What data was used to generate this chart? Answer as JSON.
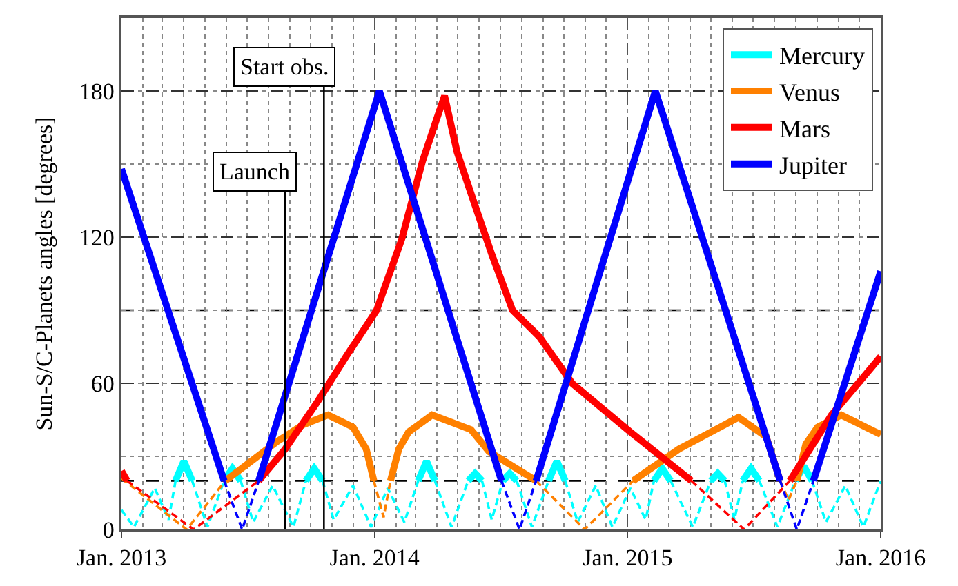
{
  "chart_data": {
    "type": "line",
    "ylabel": "Sun-S/C-Planets angles [degrees]",
    "xlim": [
      "2013-01-01",
      "2016-01-01"
    ],
    "xticks": [
      {
        "value": "2013-01-01",
        "label": "Jan. 2013"
      },
      {
        "value": "2014-01-01",
        "label": "Jan. 2014"
      },
      {
        "value": "2015-01-01",
        "label": "Jan. 2015"
      },
      {
        "value": "2016-01-01",
        "label": "Jan. 2016"
      }
    ],
    "ylim": [
      0,
      210
    ],
    "yticks": [
      0,
      60,
      120,
      180
    ],
    "grid": true,
    "legend": "top right",
    "ref_lines": [
      {
        "axis": "y",
        "value": 20,
        "label": null,
        "color": "#000000",
        "line_style": "dashed"
      },
      {
        "axis": "y",
        "value": 90,
        "label": null,
        "color": "#000000",
        "line_style": "dashed"
      },
      {
        "axis": "x",
        "value": "2013-08-25",
        "label": "Launch",
        "color": "#000000",
        "line_style": "solid"
      },
      {
        "axis": "x",
        "value": "2013-10-20",
        "label": "Start obs.",
        "color": "#000000",
        "line_style": "solid"
      }
    ],
    "series": [
      {
        "name": "Mercury",
        "color": "#00ffff",
        "x": [
          "2013-01-01",
          "2013-01-19",
          "2013-02-18",
          "2013-03-10",
          "2013-03-20",
          "2013-04-01",
          "2013-04-13",
          "2013-05-05",
          "2013-05-29",
          "2013-06-10",
          "2013-06-22",
          "2013-07-10",
          "2013-08-07",
          "2013-09-06",
          "2013-09-24",
          "2013-10-06",
          "2013-10-18",
          "2013-11-03",
          "2013-12-01",
          "2013-12-27",
          "2014-01-20",
          "2014-02-13",
          "2014-03-05",
          "2014-03-17",
          "2014-03-29",
          "2014-04-22",
          "2014-05-16",
          "2014-05-26",
          "2014-06-05",
          "2014-06-19",
          "2014-07-05",
          "2014-07-15",
          "2014-07-25",
          "2014-08-16",
          "2014-09-09",
          "2014-09-21",
          "2014-10-03",
          "2014-10-21",
          "2014-11-16",
          "2014-12-10",
          "2015-01-05",
          "2015-01-27",
          "2015-02-08",
          "2015-02-20",
          "2015-03-04",
          "2015-04-05",
          "2015-05-01",
          "2015-05-11",
          "2015-05-21",
          "2015-06-04",
          "2015-06-16",
          "2015-06-28",
          "2015-07-10",
          "2015-08-05",
          "2015-08-31",
          "2015-09-12",
          "2015-09-24",
          "2015-10-14",
          "2015-11-11",
          "2015-12-07",
          "2016-01-01"
        ],
        "values": [
          8,
          1,
          17,
          4,
          20,
          28,
          20,
          1,
          20,
          25,
          20,
          3,
          18,
          1,
          20,
          25,
          20,
          4,
          18,
          1,
          17,
          3,
          20,
          28,
          20,
          1,
          20,
          23,
          20,
          4,
          20,
          23,
          20,
          1,
          20,
          28,
          20,
          3,
          18,
          1,
          17,
          4,
          20,
          25,
          20,
          1,
          20,
          23,
          20,
          4,
          20,
          25,
          20,
          1,
          20,
          26,
          20,
          3,
          18,
          1,
          20
        ]
      },
      {
        "name": "Venus",
        "color": "#ff8000",
        "x": [
          "2013-01-01",
          "2013-04-05",
          "2013-05-31",
          "2013-08-13",
          "2013-09-20",
          "2013-10-26",
          "2013-12-01",
          "2013-12-20",
          "2013-12-31",
          "2014-01-14",
          "2014-01-24",
          "2014-02-05",
          "2014-02-19",
          "2014-03-25",
          "2014-05-20",
          "2014-06-15",
          "2014-08-22",
          "2014-10-31",
          "2015-01-09",
          "2015-03-16",
          "2015-06-10",
          "2015-07-20",
          "2015-08-09",
          "2015-08-21",
          "2015-09-02",
          "2015-09-15",
          "2015-10-02",
          "2015-11-05",
          "2016-01-01"
        ],
        "values": [
          21,
          0,
          20,
          36,
          43,
          47,
          42,
          33,
          20,
          5,
          20,
          33,
          40,
          47,
          41,
          32,
          20,
          0,
          20,
          33,
          46,
          38,
          20,
          12,
          20,
          35,
          42,
          47,
          39
        ]
      },
      {
        "name": "Mars",
        "color": "#ff0000",
        "x": [
          "2013-01-01",
          "2013-01-09",
          "2013-04-15",
          "2013-07-18",
          "2013-08-25",
          "2013-10-12",
          "2013-11-21",
          "2014-01-04",
          "2014-02-09",
          "2014-03-11",
          "2014-03-31",
          "2014-04-12",
          "2014-04-30",
          "2014-05-20",
          "2014-06-19",
          "2014-07-19",
          "2014-08-27",
          "2014-10-13",
          "2015-01-05",
          "2015-04-03",
          "2015-06-18",
          "2015-08-23",
          "2015-10-22",
          "2016-01-01"
        ],
        "values": [
          24,
          20,
          0,
          20,
          33,
          53,
          71,
          90,
          119,
          151,
          168,
          178,
          155,
          138,
          113,
          90,
          79,
          60,
          40,
          20,
          0,
          20,
          47,
          71
        ]
      },
      {
        "name": "Jupiter",
        "color": "#0000ff",
        "x": [
          "2013-01-01",
          "2013-05-29",
          "2013-06-24",
          "2013-07-18",
          "2014-01-08",
          "2014-07-03",
          "2014-07-29",
          "2014-08-22",
          "2015-02-10",
          "2015-08-09",
          "2015-09-02",
          "2015-09-26",
          "2016-01-01"
        ],
        "values": [
          148,
          20,
          0,
          20,
          180,
          20,
          0,
          20,
          180,
          20,
          0,
          20,
          106
        ]
      }
    ]
  }
}
